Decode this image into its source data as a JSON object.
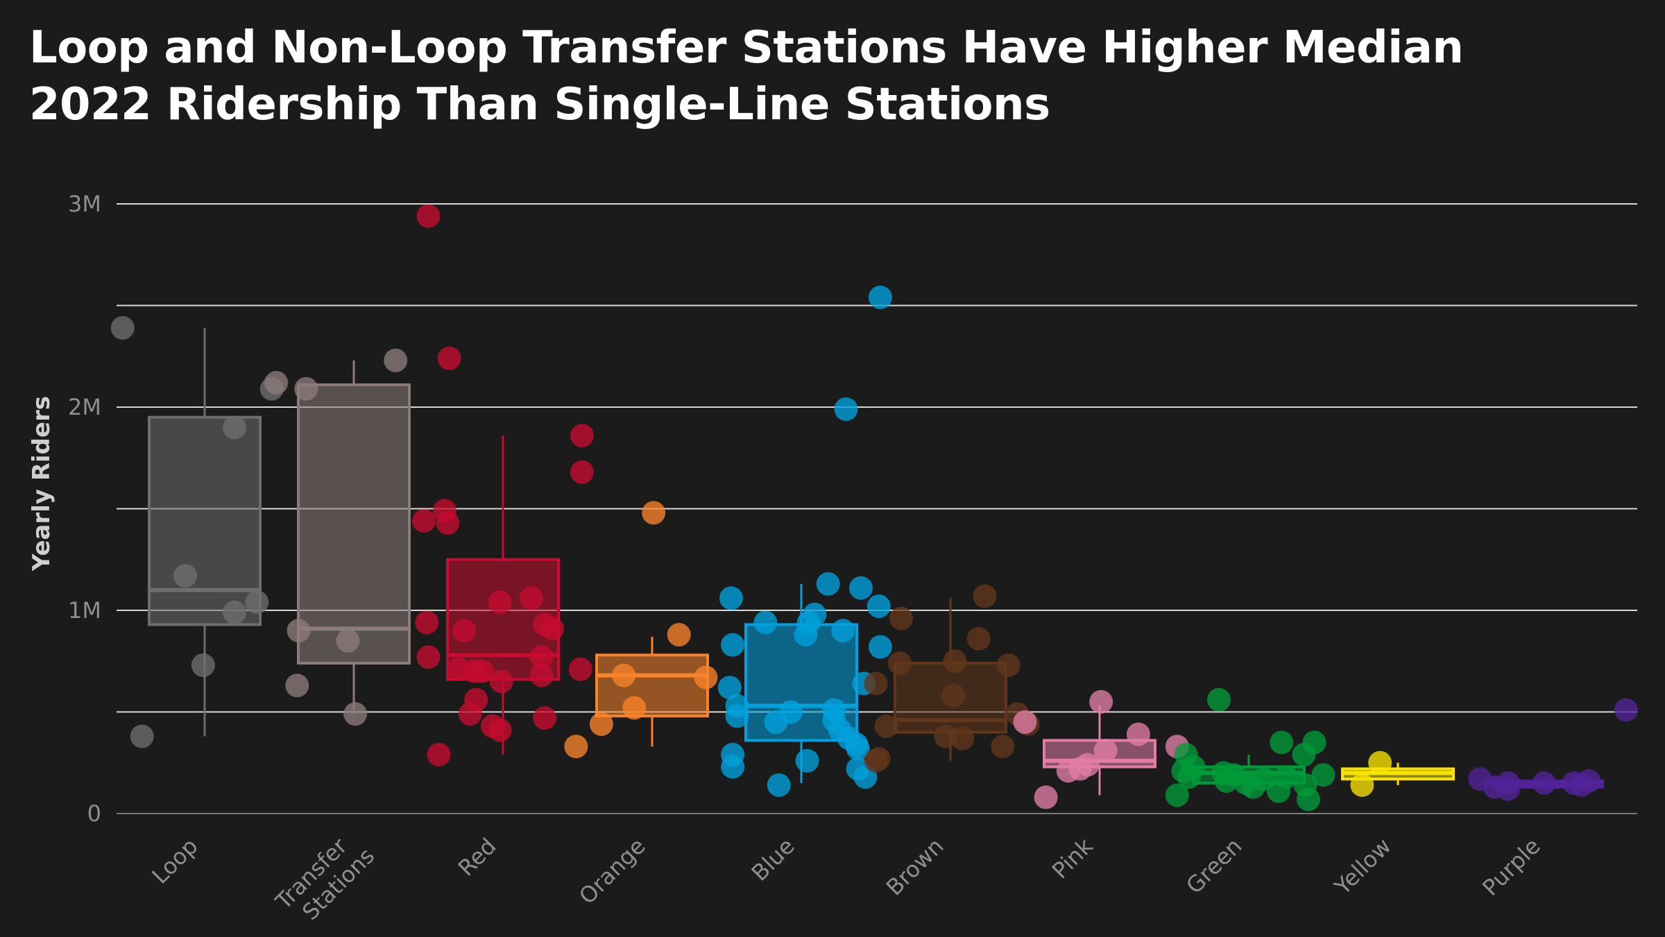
{
  "chart_data": {
    "type": "box",
    "title_lines": [
      "Loop and Non-Loop Transfer Stations Have Higher Median",
      "2022 Ridership Than Single-Line Stations"
    ],
    "ylabel": "Yearly Riders",
    "xlabel": "",
    "ylim": [
      0,
      3000000
    ],
    "yticks": [
      0,
      1000000,
      2000000,
      3000000
    ],
    "ytick_labels": [
      "0",
      "1M",
      "2M",
      "3M"
    ],
    "grid_y": [
      0,
      500000,
      1000000,
      1500000,
      2000000,
      2500000,
      3000000
    ],
    "categories": [
      {
        "label": "Loop",
        "label_lines": [
          "Loop"
        ],
        "color": "#6e6e6e",
        "box": {
          "whisker_low": 380000,
          "q1": 930000,
          "median": 1100000,
          "q3": 1950000,
          "whisker_high": 2390000
        },
        "points": [
          {
            "o": -0.55,
            "v": 2390000
          },
          {
            "o": 0.45,
            "v": 2090000
          },
          {
            "o": 0.2,
            "v": 1900000
          },
          {
            "o": -0.13,
            "v": 1170000
          },
          {
            "o": 0.35,
            "v": 1040000
          },
          {
            "o": 0.2,
            "v": 990000
          },
          {
            "o": -0.01,
            "v": 730000
          },
          {
            "o": -0.42,
            "v": 380000
          }
        ]
      },
      {
        "label": "Transfer Stations",
        "label_lines": [
          "Transfer",
          "Stations"
        ],
        "color": "#8d7b7b",
        "box": {
          "whisker_low": 490000,
          "q1": 740000,
          "median": 910000,
          "q3": 2110000,
          "whisker_high": 2230000
        },
        "points": [
          {
            "o": -0.52,
            "v": 2120000
          },
          {
            "o": -0.32,
            "v": 2090000
          },
          {
            "o": 0.28,
            "v": 2230000
          },
          {
            "o": -0.37,
            "v": 900000
          },
          {
            "o": -0.04,
            "v": 850000
          },
          {
            "o": -0.38,
            "v": 630000
          },
          {
            "o": 0.01,
            "v": 490000
          }
        ]
      },
      {
        "label": "Red",
        "label_lines": [
          "Red"
        ],
        "color": "#c60c30",
        "box": {
          "whisker_low": 290000,
          "q1": 660000,
          "median": 780000,
          "q3": 1250000,
          "whisker_high": 1860000
        },
        "points": [
          {
            "o": -0.5,
            "v": 2940000
          },
          {
            "o": -0.36,
            "v": 2240000
          },
          {
            "o": 0.53,
            "v": 1860000
          },
          {
            "o": 0.53,
            "v": 1680000
          },
          {
            "o": -0.39,
            "v": 1490000
          },
          {
            "o": -0.53,
            "v": 1440000
          },
          {
            "o": -0.37,
            "v": 1430000
          },
          {
            "o": 0.19,
            "v": 1060000
          },
          {
            "o": -0.02,
            "v": 1040000
          },
          {
            "o": -0.51,
            "v": 940000
          },
          {
            "o": 0.28,
            "v": 930000
          },
          {
            "o": 0.33,
            "v": 910000
          },
          {
            "o": -0.26,
            "v": 900000
          },
          {
            "o": 0.26,
            "v": 770000
          },
          {
            "o": -0.5,
            "v": 770000
          },
          {
            "o": -0.3,
            "v": 710000
          },
          {
            "o": -0.19,
            "v": 700000
          },
          {
            "o": -0.14,
            "v": 700000
          },
          {
            "o": 0.52,
            "v": 710000
          },
          {
            "o": 0.26,
            "v": 680000
          },
          {
            "o": -0.01,
            "v": 650000
          },
          {
            "o": -0.18,
            "v": 560000
          },
          {
            "o": -0.22,
            "v": 490000
          },
          {
            "o": 0.28,
            "v": 470000
          },
          {
            "o": -0.07,
            "v": 430000
          },
          {
            "o": -0.02,
            "v": 410000
          },
          {
            "o": -0.43,
            "v": 290000
          }
        ]
      },
      {
        "label": "Orange",
        "label_lines": [
          "Orange"
        ],
        "color": "#f9832a",
        "box": {
          "whisker_low": 330000,
          "q1": 480000,
          "median": 680000,
          "q3": 780000,
          "whisker_high": 870000
        },
        "points": [
          {
            "o": 0.01,
            "v": 1480000
          },
          {
            "o": 0.18,
            "v": 880000
          },
          {
            "o": -0.19,
            "v": 680000
          },
          {
            "o": 0.36,
            "v": 670000
          },
          {
            "o": -0.12,
            "v": 520000
          },
          {
            "o": -0.34,
            "v": 440000
          },
          {
            "o": -0.51,
            "v": 330000
          }
        ]
      },
      {
        "label": "Blue",
        "label_lines": [
          "Blue"
        ],
        "color": "#00a1de",
        "box": {
          "whisker_low": 150000,
          "q1": 360000,
          "median": 530000,
          "q3": 930000,
          "whisker_high": 1130000
        },
        "points": [
          {
            "o": 0.53,
            "v": 2540000
          },
          {
            "o": 0.3,
            "v": 1990000
          },
          {
            "o": 0.18,
            "v": 1130000
          },
          {
            "o": 0.4,
            "v": 1110000
          },
          {
            "o": -0.47,
            "v": 1060000
          },
          {
            "o": 0.52,
            "v": 1020000
          },
          {
            "o": 0.09,
            "v": 980000
          },
          {
            "o": 0.05,
            "v": 940000
          },
          {
            "o": -0.24,
            "v": 940000
          },
          {
            "o": 0.28,
            "v": 900000
          },
          {
            "o": 0.03,
            "v": 880000
          },
          {
            "o": -0.46,
            "v": 830000
          },
          {
            "o": 0.53,
            "v": 820000
          },
          {
            "o": 0.42,
            "v": 640000
          },
          {
            "o": -0.48,
            "v": 620000
          },
          {
            "o": -0.43,
            "v": 530000
          },
          {
            "o": 0.22,
            "v": 510000
          },
          {
            "o": -0.07,
            "v": 500000
          },
          {
            "o": -0.43,
            "v": 480000
          },
          {
            "o": 0.22,
            "v": 460000
          },
          {
            "o": -0.17,
            "v": 450000
          },
          {
            "o": 0.26,
            "v": 410000
          },
          {
            "o": 0.32,
            "v": 370000
          },
          {
            "o": 0.37,
            "v": 340000
          },
          {
            "o": 0.38,
            "v": 320000
          },
          {
            "o": -0.46,
            "v": 290000
          },
          {
            "o": 0.04,
            "v": 260000
          },
          {
            "o": -0.46,
            "v": 230000
          },
          {
            "o": 0.38,
            "v": 220000
          },
          {
            "o": 0.43,
            "v": 180000
          },
          {
            "o": -0.15,
            "v": 140000
          }
        ]
      },
      {
        "label": "Brown",
        "label_lines": [
          "Brown"
        ],
        "color": "#62361b",
        "box": {
          "whisker_low": 260000,
          "q1": 400000,
          "median": 460000,
          "q3": 740000,
          "whisker_high": 1060000
        },
        "points": [
          {
            "o": 0.23,
            "v": 1070000
          },
          {
            "o": -0.33,
            "v": 960000
          },
          {
            "o": 0.19,
            "v": 860000
          },
          {
            "o": 0.03,
            "v": 750000
          },
          {
            "o": -0.34,
            "v": 740000
          },
          {
            "o": 0.39,
            "v": 730000
          },
          {
            "o": -0.5,
            "v": 640000
          },
          {
            "o": 0.02,
            "v": 580000
          },
          {
            "o": 0.45,
            "v": 490000
          },
          {
            "o": 0.52,
            "v": 440000
          },
          {
            "o": -0.43,
            "v": 430000
          },
          {
            "o": -0.03,
            "v": 380000
          },
          {
            "o": 0.08,
            "v": 370000
          },
          {
            "o": 0.35,
            "v": 330000
          },
          {
            "o": -0.48,
            "v": 270000
          },
          {
            "o": -0.5,
            "v": 260000
          }
        ]
      },
      {
        "label": "Pink",
        "label_lines": [
          "Pink"
        ],
        "color": "#e27ea6",
        "box": {
          "whisker_low": 90000,
          "q1": 230000,
          "median": 260000,
          "q3": 360000,
          "whisker_high": 530000
        },
        "points": [
          {
            "o": 0.01,
            "v": 550000
          },
          {
            "o": -0.5,
            "v": 450000
          },
          {
            "o": 0.26,
            "v": 390000
          },
          {
            "o": 0.52,
            "v": 330000
          },
          {
            "o": 0.04,
            "v": 310000
          },
          {
            "o": -0.08,
            "v": 240000
          },
          {
            "o": -0.13,
            "v": 220000
          },
          {
            "o": -0.21,
            "v": 210000
          },
          {
            "o": -0.36,
            "v": 80000
          }
        ]
      },
      {
        "label": "Green",
        "label_lines": [
          "Green"
        ],
        "color": "#009b3a",
        "box": {
          "whisker_low": 80000,
          "q1": 150000,
          "median": 200000,
          "q3": 230000,
          "whisker_high": 290000
        },
        "points": [
          {
            "o": -0.2,
            "v": 560000
          },
          {
            "o": 0.22,
            "v": 350000
          },
          {
            "o": 0.44,
            "v": 350000
          },
          {
            "o": 0.37,
            "v": 290000
          },
          {
            "o": -0.42,
            "v": 290000
          },
          {
            "o": -0.37,
            "v": 230000
          },
          {
            "o": -0.44,
            "v": 210000
          },
          {
            "o": -0.17,
            "v": 200000
          },
          {
            "o": -0.1,
            "v": 190000
          },
          {
            "o": 0.5,
            "v": 190000
          },
          {
            "o": -0.4,
            "v": 180000
          },
          {
            "o": 0.25,
            "v": 180000
          },
          {
            "o": 0.1,
            "v": 170000
          },
          {
            "o": -0.15,
            "v": 160000
          },
          {
            "o": -0.02,
            "v": 150000
          },
          {
            "o": 0.38,
            "v": 140000
          },
          {
            "o": 0.03,
            "v": 130000
          },
          {
            "o": 0.2,
            "v": 110000
          },
          {
            "o": -0.48,
            "v": 90000
          },
          {
            "o": 0.4,
            "v": 70000
          }
        ]
      },
      {
        "label": "Yellow",
        "label_lines": [
          "Yellow"
        ],
        "color": "#f9e300",
        "box": {
          "whisker_low": 140000,
          "q1": 170000,
          "median": 200000,
          "q3": 220000,
          "whisker_high": 250000
        },
        "points": [
          {
            "o": -0.12,
            "v": 250000
          },
          {
            "o": -0.24,
            "v": 140000
          }
        ]
      },
      {
        "label": "Purple",
        "label_lines": [
          "Purple"
        ],
        "color": "#522398",
        "box": {
          "whisker_low": 110000,
          "q1": 130000,
          "median": 145000,
          "q3": 160000,
          "whisker_high": 180000
        },
        "points": [
          {
            "o": 0.53,
            "v": 510000
          },
          {
            "o": -0.45,
            "v": 170000
          },
          {
            "o": 0.28,
            "v": 160000
          },
          {
            "o": -0.26,
            "v": 150000
          },
          {
            "o": -0.02,
            "v": 150000
          },
          {
            "o": 0.18,
            "v": 150000
          },
          {
            "o": 0.23,
            "v": 140000
          },
          {
            "o": -0.35,
            "v": 130000
          },
          {
            "o": -0.26,
            "v": 120000
          }
        ]
      }
    ]
  }
}
